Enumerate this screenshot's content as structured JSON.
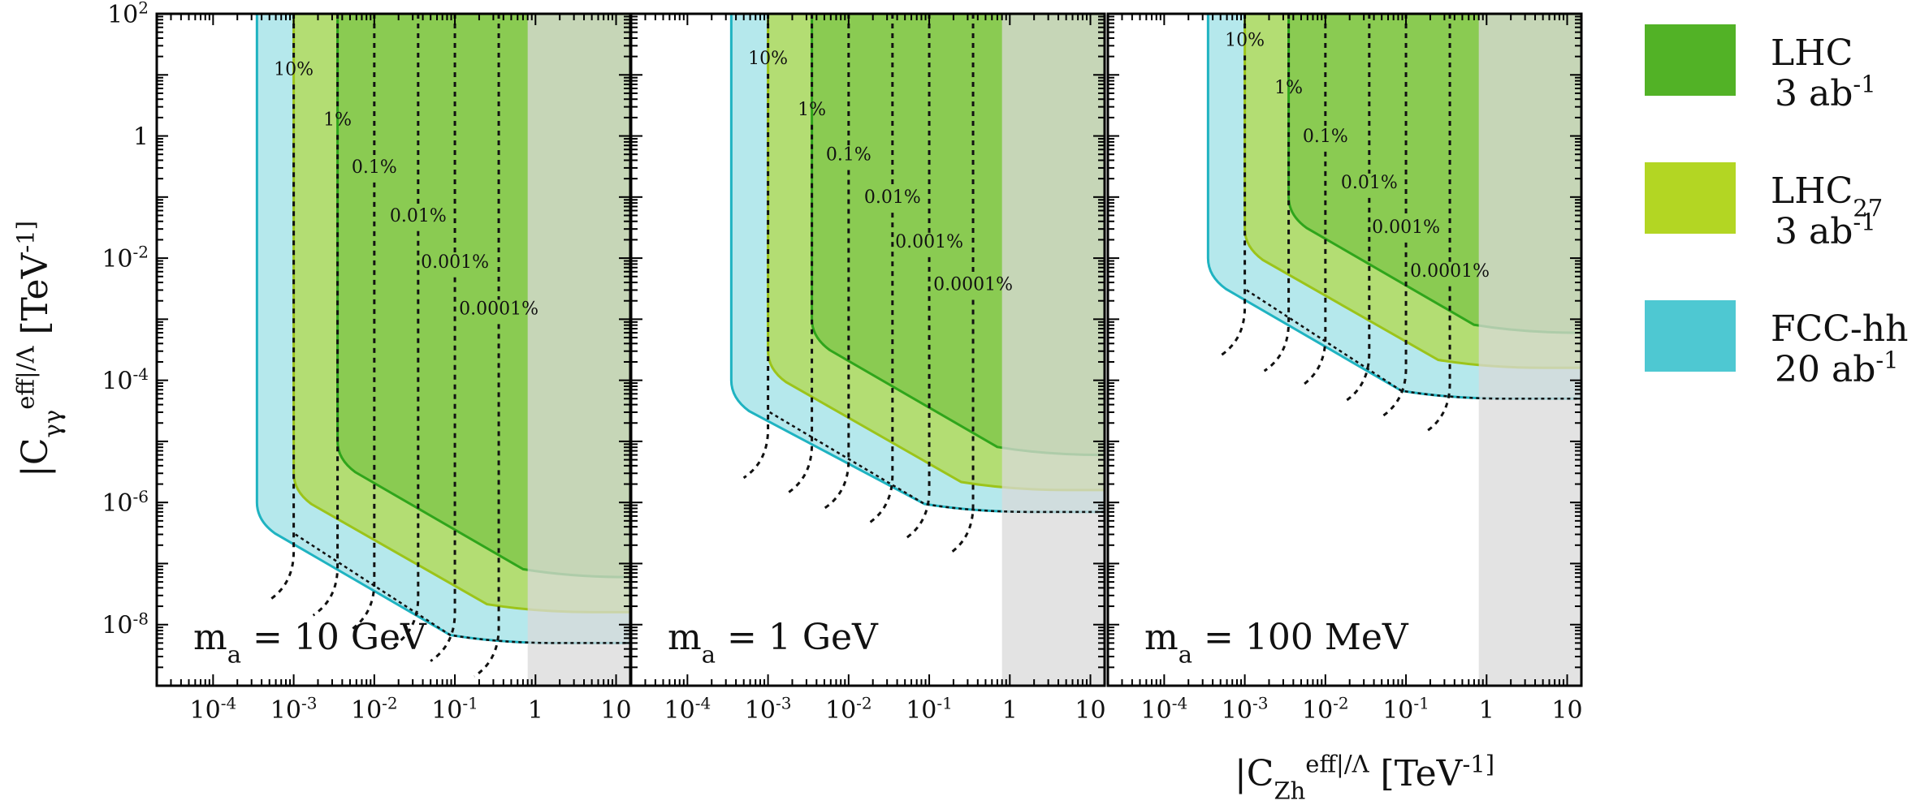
{
  "chart_data": {
    "type": "area",
    "x_scale": "log",
    "y_scale": "log",
    "xlim": [
      2e-05,
      15
    ],
    "ylim": [
      1e-09,
      100
    ],
    "xlabel": "|C_Zh^eff|/Λ   [TeV^-1]",
    "ylabel": "|C_γγ^eff|/Λ  [TeV^-1]",
    "x_tick_labels": [
      "10^-4",
      "10^-3",
      "10^-2",
      "10^-1",
      "1",
      "10"
    ],
    "y_tick_labels": [
      "10^2",
      "1",
      "10^-2",
      "10^-4",
      "10^-6",
      "10^-8"
    ],
    "legend": [
      {
        "label": "LHC",
        "luminosity": "3 ab^-1",
        "color": "#52b226"
      },
      {
        "label": "LHC27",
        "luminosity": "3 ab^-1",
        "color": "#b3d623"
      },
      {
        "label": "FCC-hh",
        "luminosity": "20 ab^-1",
        "color": "#4ec8d2"
      }
    ],
    "excluded_shade": {
      "color": "#d9d9d9",
      "x_from": 0.8
    },
    "panels": [
      {
        "mass_label": "m_a = 10 GeV",
        "regions": [
          {
            "name": "FCC-hh",
            "x_min": 0.00035,
            "y_floor": 1e-08,
            "y_min": 5e-09
          },
          {
            "name": "LHC27",
            "x_min": 0.001,
            "y_floor": 3e-08,
            "y_min": 1.6e-08
          },
          {
            "name": "LHC",
            "x_min": 0.0035,
            "y_floor": 1e-07,
            "y_min": 6e-08
          }
        ],
        "contours": [
          {
            "label": "10%",
            "x": 0.001,
            "label_y": 10
          },
          {
            "label": "1%",
            "x": 0.0035,
            "label_y": 1.5
          },
          {
            "label": "0.1%",
            "x": 0.01,
            "label_y": 0.25
          },
          {
            "label": "0.01%",
            "x": 0.035,
            "label_y": 0.04
          },
          {
            "label": "0.001%",
            "x": 0.1,
            "label_y": 0.007
          },
          {
            "label": "0.0001%",
            "x": 0.35,
            "label_y": 0.0012
          }
        ]
      },
      {
        "mass_label": "m_a = 1 GeV",
        "regions": [
          {
            "name": "FCC-hh",
            "x_min": 0.00035,
            "y_floor": 1e-06,
            "y_min": 7e-07
          },
          {
            "name": "LHC27",
            "x_min": 0.001,
            "y_floor": 3e-06,
            "y_min": 1.6e-06
          },
          {
            "name": "LHC",
            "x_min": 0.0035,
            "y_floor": 1e-05,
            "y_min": 6e-06
          }
        ],
        "contours": [
          {
            "label": "10%",
            "x": 0.001,
            "label_y": 15
          },
          {
            "label": "1%",
            "x": 0.0035,
            "label_y": 2.2
          },
          {
            "label": "0.1%",
            "x": 0.01,
            "label_y": 0.4
          },
          {
            "label": "0.01%",
            "x": 0.035,
            "label_y": 0.08
          },
          {
            "label": "0.001%",
            "x": 0.1,
            "label_y": 0.015
          },
          {
            "label": "0.0001%",
            "x": 0.35,
            "label_y": 0.003
          }
        ]
      },
      {
        "mass_label": "m_a = 100 MeV",
        "regions": [
          {
            "name": "FCC-hh",
            "x_min": 0.00035,
            "y_floor": 0.0001,
            "y_min": 5e-05
          },
          {
            "name": "LHC27",
            "x_min": 0.001,
            "y_floor": 0.0003,
            "y_min": 0.00016
          },
          {
            "name": "LHC",
            "x_min": 0.0035,
            "y_floor": 0.001,
            "y_min": 0.0006
          }
        ],
        "contours": [
          {
            "label": "10%",
            "x": 0.001,
            "label_y": 30
          },
          {
            "label": "1%",
            "x": 0.0035,
            "label_y": 5
          },
          {
            "label": "0.1%",
            "x": 0.01,
            "label_y": 0.8
          },
          {
            "label": "0.01%",
            "x": 0.035,
            "label_y": 0.14
          },
          {
            "label": "0.001%",
            "x": 0.1,
            "label_y": 0.026
          },
          {
            "label": "0.0001%",
            "x": 0.35,
            "label_y": 0.005
          }
        ]
      }
    ]
  }
}
